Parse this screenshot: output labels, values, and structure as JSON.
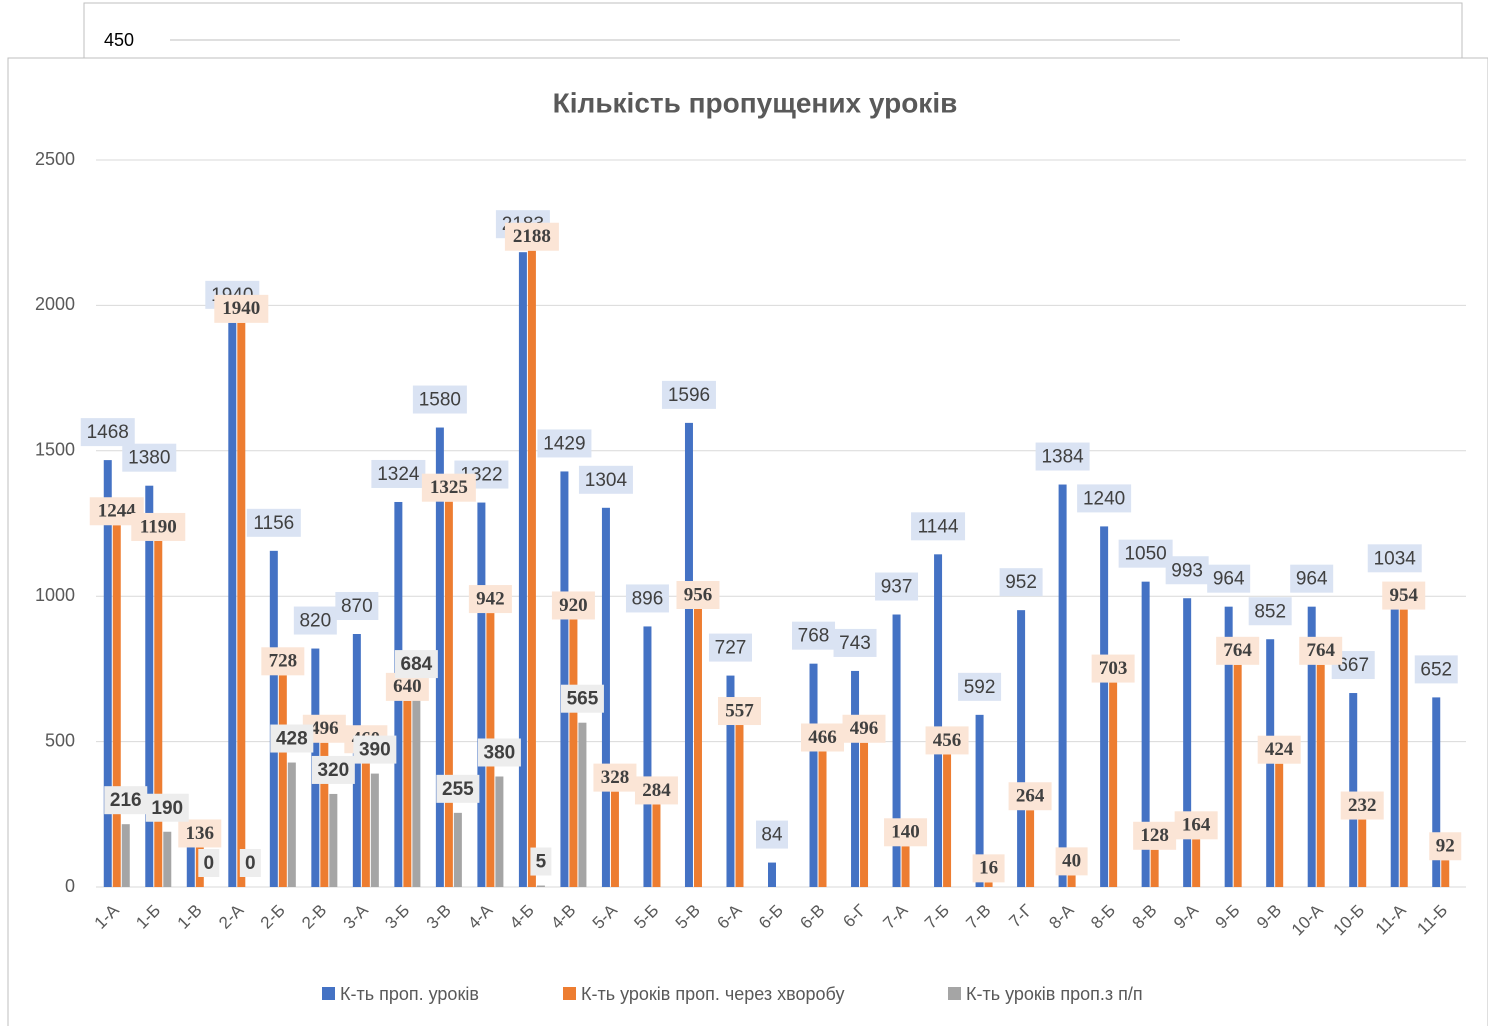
{
  "partial_chart_above": {
    "label": "450"
  },
  "chart_data": {
    "type": "bar",
    "title": "Кількість пропущених уроків",
    "categories": [
      "1-А",
      "1-Б",
      "1-В",
      "2-А",
      "2-Б",
      "2-В",
      "3-А",
      "3-Б",
      "3-В",
      "4-А",
      "4-Б",
      "4-В",
      "5-А",
      "5-Б",
      "5-В",
      "6-А",
      "6-Б",
      "6-В",
      "6-Г",
      "7-А",
      "7-Б",
      "7-В",
      "7-Г",
      "8-А",
      "8-Б",
      "8-В",
      "9-А",
      "9-Б",
      "9-В",
      "10-А",
      "10-Б",
      "11-А",
      "11-Б"
    ],
    "series": [
      {
        "name": "К-ть проп. уроків",
        "color": "#4472c4",
        "label_bg": "#dae3f3",
        "values": [
          1468,
          1380,
          140,
          1940,
          1156,
          820,
          870,
          1324,
          1580,
          1322,
          2183,
          1429,
          1304,
          896,
          1596,
          727,
          84,
          768,
          743,
          937,
          1144,
          592,
          952,
          1384,
          1240,
          1050,
          993,
          964,
          852,
          964,
          667,
          1034,
          652
        ],
        "value_labels": [
          "1468",
          "1380",
          null,
          "1940",
          "1156",
          "820",
          "870",
          "1324",
          "1580",
          "1322",
          "2183",
          "1429",
          "1304",
          "896",
          "1596",
          "727",
          "84",
          "768",
          "743",
          "937",
          "1144",
          "592",
          "952",
          "1384",
          "1240",
          "1050",
          "993",
          "964",
          "852",
          "964",
          "667",
          "1034",
          "652"
        ]
      },
      {
        "name": "К-ть уроків проп. через хворобу",
        "color": "#ed7d31",
        "label_bg": "#fbe5d6",
        "values": [
          1244,
          1190,
          136,
          1940,
          728,
          496,
          460,
          640,
          1325,
          942,
          2188,
          920,
          328,
          284,
          956,
          557,
          0,
          466,
          496,
          140,
          456,
          16,
          264,
          40,
          703,
          128,
          164,
          764,
          424,
          764,
          232,
          954,
          92
        ],
        "value_labels": [
          "1244",
          "1190",
          "136",
          "1940",
          "728",
          "496",
          "460",
          "640",
          "1325",
          "942",
          "2188",
          "920",
          "328",
          "284",
          "956",
          "557",
          null,
          "466",
          "496",
          "140",
          "456",
          "16",
          "264",
          "40",
          "703",
          "128",
          "164",
          "764",
          "424",
          "764",
          "232",
          "954",
          "92"
        ]
      },
      {
        "name": "К-ть уроків проп.з п/п",
        "color": "#a5a5a5",
        "label_bg": "#ededed",
        "values": [
          216,
          190,
          0,
          0,
          428,
          320,
          390,
          684,
          255,
          380,
          5,
          565,
          0,
          0,
          0,
          0,
          0,
          0,
          0,
          0,
          0,
          0,
          0,
          0,
          0,
          0,
          0,
          0,
          0,
          0,
          0,
          0,
          0
        ],
        "value_labels": [
          "216",
          "190",
          "0",
          "0",
          "428",
          "320",
          "390",
          "684",
          "255",
          "380",
          "5",
          "565",
          null,
          null,
          null,
          null,
          null,
          null,
          null,
          null,
          null,
          null,
          null,
          null,
          null,
          null,
          null,
          null,
          null,
          null,
          null,
          null,
          null
        ]
      }
    ],
    "ylim": [
      0,
      2500
    ],
    "yticks": [
      0,
      500,
      1000,
      1500,
      2000,
      2500
    ],
    "grid": true,
    "legend": "bottom"
  }
}
